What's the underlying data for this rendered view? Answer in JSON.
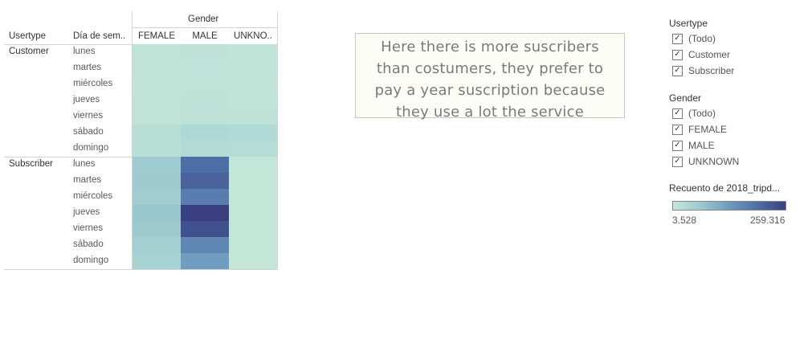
{
  "chart_data": {
    "type": "heatmap",
    "header": {
      "usertype": "Usertype",
      "weekday": "Día de sem..",
      "gender": "Gender",
      "columns": [
        "FEMALE",
        "MALE",
        "UNKNO.."
      ]
    },
    "rows": [
      {
        "usertype": "Customer",
        "days": [
          {
            "day": "lunes",
            "values": [
              10000,
              12000,
              8000
            ]
          },
          {
            "day": "martes",
            "values": [
              10000,
              11000,
              8000
            ]
          },
          {
            "day": "miércoles",
            "values": [
              9000,
              10000,
              7000
            ]
          },
          {
            "day": "jueves",
            "values": [
              10000,
              12000,
              9000
            ]
          },
          {
            "day": "viernes",
            "values": [
              10000,
              13000,
              12000
            ]
          },
          {
            "day": "sábado",
            "values": [
              22000,
              35000,
              32000
            ]
          },
          {
            "day": "domingo",
            "values": [
              18000,
              28000,
              25000
            ]
          }
        ]
      },
      {
        "usertype": "Subscriber",
        "days": [
          {
            "day": "lunes",
            "values": [
              60000,
              195000,
              3528
            ]
          },
          {
            "day": "martes",
            "values": [
              62000,
              210000,
              3528
            ]
          },
          {
            "day": "miércoles",
            "values": [
              58000,
              175000,
              3528
            ]
          },
          {
            "day": "jueves",
            "values": [
              70000,
              259316,
              3528
            ]
          },
          {
            "day": "viernes",
            "values": [
              65000,
              235000,
              3528
            ]
          },
          {
            "day": "sábado",
            "values": [
              55000,
              160000,
              3528
            ]
          },
          {
            "day": "domingo",
            "values": [
              45000,
              130000,
              3528
            ]
          }
        ]
      }
    ],
    "color_range": [
      3528,
      259316
    ],
    "color_scale": [
      "#c4e6d9",
      "#9ac9cf",
      "#6f9bbf",
      "#4d6fa6",
      "#3a3f80"
    ]
  },
  "annotation": "Here there is more suscribers than costumers, they prefer to pay a year suscription because they use a lot the service",
  "filters": {
    "usertype": {
      "title": "Usertype",
      "options": [
        {
          "label": "(Todo)",
          "checked": true
        },
        {
          "label": "Customer",
          "checked": true
        },
        {
          "label": "Subscriber",
          "checked": true
        }
      ]
    },
    "gender": {
      "title": "Gender",
      "options": [
        {
          "label": "(Todo)",
          "checked": true
        },
        {
          "label": "FEMALE",
          "checked": true
        },
        {
          "label": "MALE",
          "checked": true
        },
        {
          "label": "UNKNOWN",
          "checked": true
        }
      ]
    }
  },
  "legend": {
    "title": "Recuento de 2018_tripd...",
    "min_label": "3.528",
    "max_label": "259.316"
  }
}
